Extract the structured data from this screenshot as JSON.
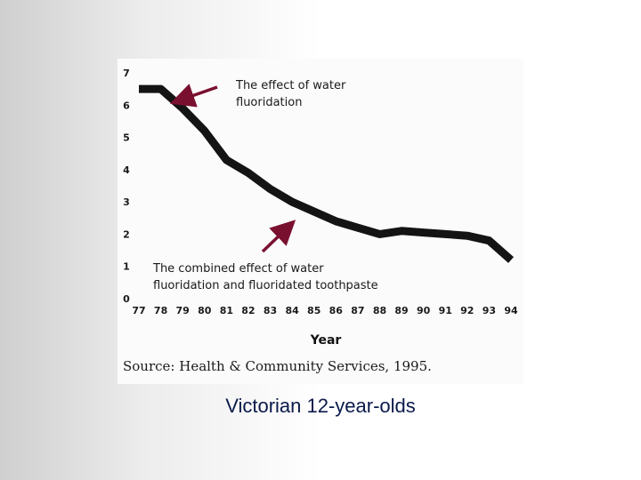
{
  "caption": "Victorian 12-year-olds",
  "chart_data": {
    "type": "line",
    "xlabel": "Year",
    "ylabel": "",
    "ylim": [
      0,
      7
    ],
    "xlim": [
      77,
      94
    ],
    "y_ticks": [
      "0",
      "1",
      "2",
      "3",
      "4",
      "5",
      "6",
      "7"
    ],
    "x_ticks": [
      "77",
      "78",
      "79",
      "80",
      "81",
      "82",
      "83",
      "84",
      "85",
      "86",
      "87",
      "88",
      "89",
      "90",
      "91",
      "92",
      "93",
      "94"
    ],
    "series": [
      {
        "color": "#141414",
        "x": [
          77,
          78,
          79,
          80,
          81,
          82,
          83,
          84,
          85,
          86,
          87,
          88,
          89,
          90,
          91,
          92,
          93,
          94
        ],
        "y": [
          6.5,
          6.5,
          5.9,
          5.2,
          4.3,
          3.9,
          3.4,
          3.0,
          2.7,
          2.4,
          2.2,
          2.0,
          2.1,
          2.05,
          2.0,
          1.95,
          1.8,
          1.2
        ]
      }
    ],
    "annotations": [
      {
        "lines": [
          "The effect of  water",
          "fluoridation"
        ],
        "arrow_color": "#7a1030"
      },
      {
        "lines": [
          "The combined effect of water",
          "fluoridation and fluoridated toothpaste"
        ],
        "arrow_color": "#7a1030"
      }
    ],
    "source": "Source: Health & Community Services, 1995."
  }
}
